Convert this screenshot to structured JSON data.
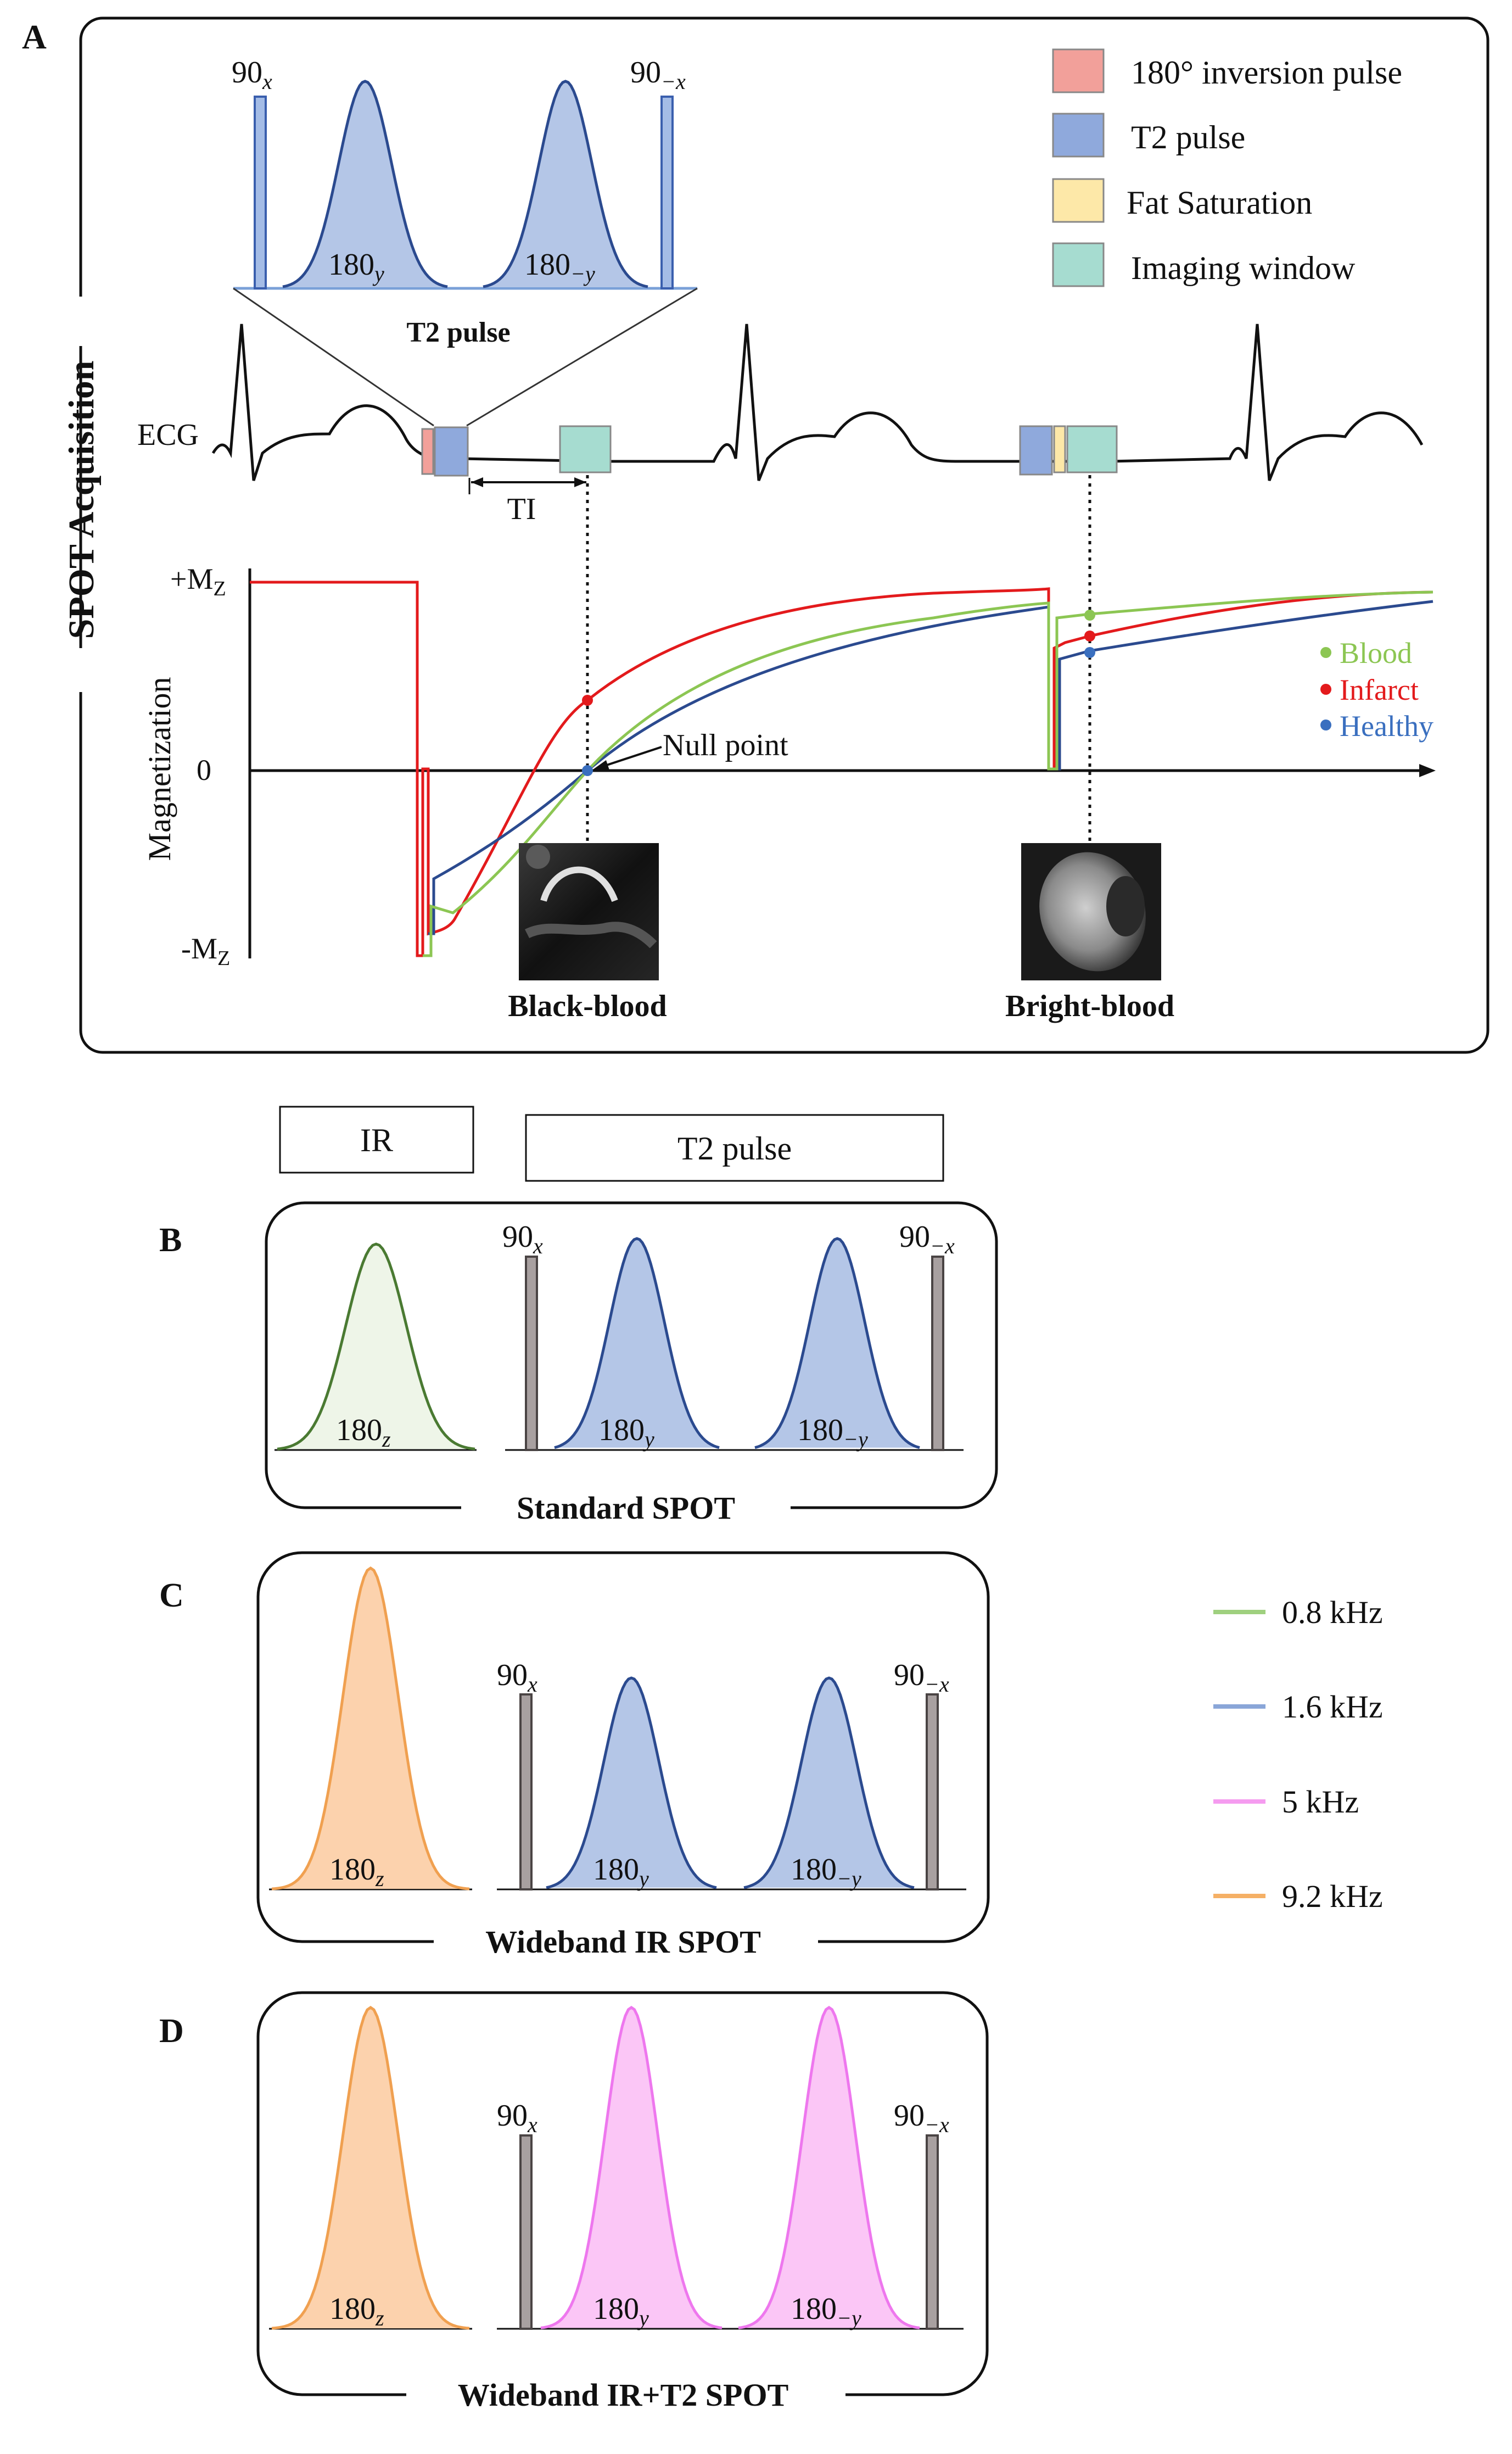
{
  "panel_labels": {
    "a": "A",
    "b": "B",
    "c": "C",
    "d": "D"
  },
  "panel_a": {
    "side_title": "SPOT Acquisition",
    "t2_zoom": {
      "label": "T2 pulse",
      "p90_left": {
        "base": "90",
        "sub": "x"
      },
      "p90_right": {
        "base": "90",
        "sub": "−x"
      },
      "p180_left": {
        "base": "180",
        "sub": "y"
      },
      "p180_right": {
        "base": "180",
        "sub": "−y"
      }
    },
    "ecg_label": "ECG",
    "ti_label": "TI",
    "legend": [
      {
        "label": "180° inversion pulse",
        "color": "#f2a09a"
      },
      {
        "label": "T2 pulse",
        "color": "#8fa9dc"
      },
      {
        "label": "Fat Saturation",
        "color": "#fde8a8"
      },
      {
        "label": "Imaging window",
        "color": "#a6dcd0"
      }
    ],
    "graph": {
      "y_axis_label": "Magnetization",
      "y_top": {
        "base": "+M",
        "sub": "Z"
      },
      "y_zero": "0",
      "y_bottom": {
        "base": "-M",
        "sub": "Z"
      },
      "null_point": "Null point",
      "species": [
        {
          "label": "Blood",
          "color": "#8cc653"
        },
        {
          "label": "Infarct",
          "color": "#e31a1c"
        },
        {
          "label": "Healthy",
          "color": "#3a6fbf"
        }
      ],
      "black_blood": "Black-blood",
      "bright_blood": "Bright-blood"
    }
  },
  "headers": {
    "ir": "IR",
    "t2": "T2 pulse"
  },
  "panels": [
    {
      "key": "b",
      "title": "Standard SPOT",
      "ir": {
        "base": "180",
        "sub": "z",
        "color": "#4a7a32",
        "fill": "#eef5e8"
      },
      "refocus_color": "#2b4a8f",
      "refocus_fill": "#b4c6e7",
      "p90_left": {
        "base": "90",
        "sub": "x"
      },
      "p90_right": {
        "base": "90",
        "sub": "−x"
      },
      "p180_left": {
        "base": "180",
        "sub": "y"
      },
      "p180_right": {
        "base": "180",
        "sub": "−y"
      }
    },
    {
      "key": "c",
      "title": "Wideband IR SPOT",
      "ir": {
        "base": "180",
        "sub": "z",
        "color": "#f0a050",
        "fill": "#fcd2ad"
      },
      "refocus_color": "#2b4a8f",
      "refocus_fill": "#b4c6e7",
      "p90_left": {
        "base": "90",
        "sub": "x"
      },
      "p90_right": {
        "base": "90",
        "sub": "−x"
      },
      "p180_left": {
        "base": "180",
        "sub": "y"
      },
      "p180_right": {
        "base": "180",
        "sub": "−y"
      }
    },
    {
      "key": "d",
      "title": "Wideband IR+T2 SPOT",
      "ir": {
        "base": "180",
        "sub": "z",
        "color": "#f0a050",
        "fill": "#fcd2ad"
      },
      "refocus_color": "#ee77ee",
      "refocus_fill": "#fbc6f6",
      "p90_left": {
        "base": "90",
        "sub": "x"
      },
      "p90_right": {
        "base": "90",
        "sub": "−x"
      },
      "p180_left": {
        "base": "180",
        "sub": "y"
      },
      "p180_right": {
        "base": "180",
        "sub": "−y"
      }
    }
  ],
  "bandwidth_legend": [
    {
      "label": "0.8 kHz",
      "color": "#9fd07f"
    },
    {
      "label": "1.6 kHz",
      "color": "#8aa6d8"
    },
    {
      "label": "5 kHz",
      "color": "#f59cf0"
    },
    {
      "label": "9.2 kHz",
      "color": "#f5b066"
    }
  ]
}
